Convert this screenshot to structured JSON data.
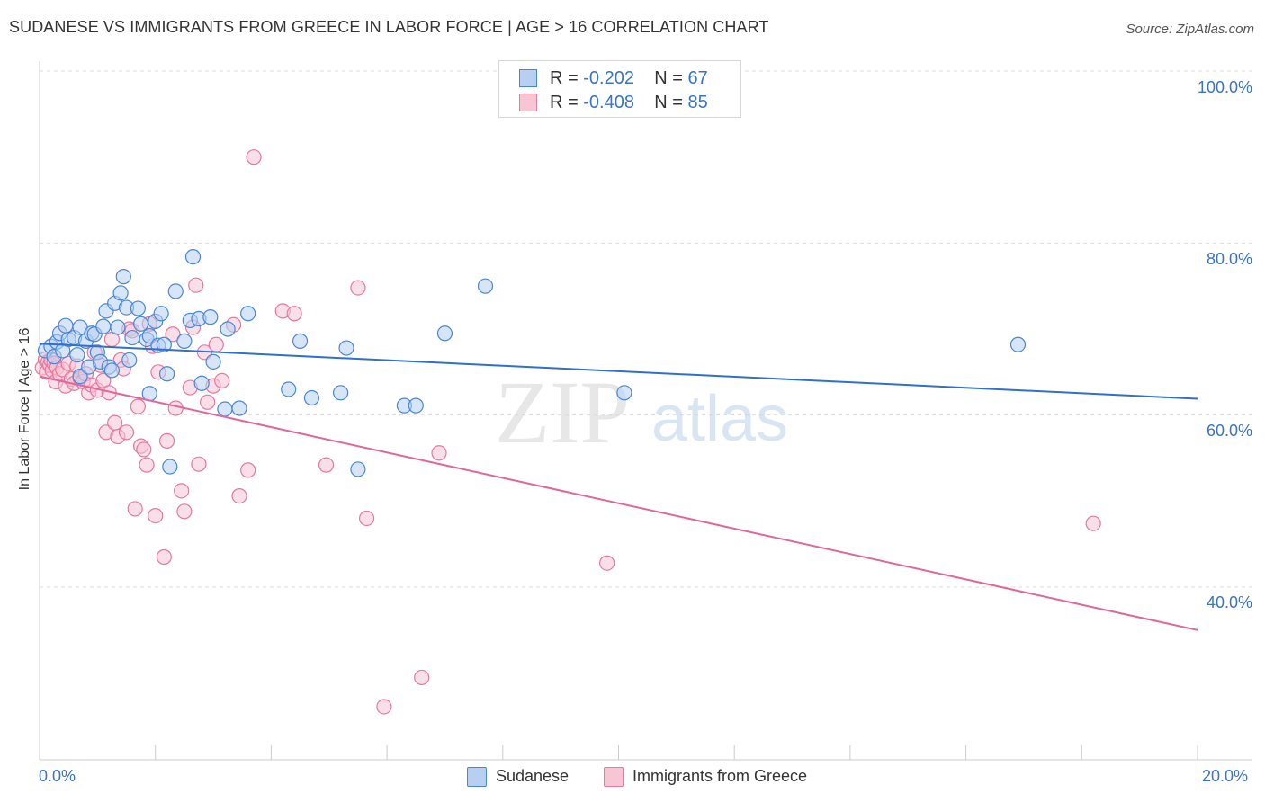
{
  "title": "SUDANESE VS IMMIGRANTS FROM GREECE IN LABOR FORCE | AGE > 16 CORRELATION CHART",
  "source": "Source: ZipAtlas.com",
  "watermark": {
    "zip": "ZIP",
    "atlas": "atlas"
  },
  "colors": {
    "blue_fill": "#b7d0f2",
    "blue_stroke": "#4a86d6",
    "blue_line": "#2f6fd0",
    "pink_fill": "#f8c5d5",
    "pink_stroke": "#e5799e",
    "pink_line": "#e0679a",
    "grid": "#dddddd",
    "axis_text": "#3b73c8"
  },
  "legend_top": [
    {
      "r_label": "R =",
      "r_value": "-0.202",
      "n_label": "N =",
      "n_value": "67"
    },
    {
      "r_label": "R =",
      "r_value": "-0.408",
      "n_label": "N =",
      "n_value": "85"
    }
  ],
  "legend_bottom": [
    "Sudanese",
    "Immigrants from Greece"
  ],
  "chart_data": {
    "type": "scatter",
    "title": "SUDANESE VS IMMIGRANTS FROM GREECE IN LABOR FORCE | AGE > 16 CORRELATION CHART",
    "xlabel": "",
    "ylabel": "In Labor Force | Age > 16",
    "x_tick_labels": [
      "0.0%",
      "20.0%"
    ],
    "y_tick_labels": [
      "100.0%",
      "80.0%",
      "60.0%",
      "40.0%"
    ],
    "xlim": [
      0,
      20
    ],
    "ylim": [
      20,
      103
    ],
    "y_gridlines": [
      100,
      80,
      60,
      40
    ],
    "series": [
      {
        "name": "Sudanese",
        "r": -0.202,
        "n": 67,
        "trend": {
          "x0": 0,
          "y0": 68.3,
          "x1": 20,
          "y1": 61.9
        },
        "points": [
          [
            0.1,
            67.5
          ],
          [
            0.2,
            68.0
          ],
          [
            0.25,
            66.8
          ],
          [
            0.3,
            68.5
          ],
          [
            0.35,
            69.5
          ],
          [
            0.4,
            67.5
          ],
          [
            0.45,
            70.4
          ],
          [
            0.5,
            68.8
          ],
          [
            0.6,
            69.0
          ],
          [
            0.65,
            67.0
          ],
          [
            0.7,
            64.5
          ],
          [
            0.7,
            70.2
          ],
          [
            0.8,
            68.6
          ],
          [
            0.85,
            65.6
          ],
          [
            0.9,
            69.5
          ],
          [
            0.95,
            69.4
          ],
          [
            1.0,
            67.3
          ],
          [
            1.05,
            66.2
          ],
          [
            1.1,
            70.3
          ],
          [
            1.15,
            72.1
          ],
          [
            1.2,
            65.6
          ],
          [
            1.25,
            65.2
          ],
          [
            1.3,
            73.0
          ],
          [
            1.35,
            70.2
          ],
          [
            1.4,
            74.2
          ],
          [
            1.45,
            76.1
          ],
          [
            1.5,
            72.5
          ],
          [
            1.55,
            66.4
          ],
          [
            1.6,
            69.0
          ],
          [
            1.7,
            72.4
          ],
          [
            1.75,
            70.6
          ],
          [
            1.85,
            68.8
          ],
          [
            1.9,
            69.2
          ],
          [
            1.9,
            62.5
          ],
          [
            2.0,
            70.9
          ],
          [
            2.05,
            68.1
          ],
          [
            2.1,
            71.8
          ],
          [
            2.15,
            68.2
          ],
          [
            2.2,
            64.8
          ],
          [
            2.25,
            54.0
          ],
          [
            2.35,
            74.4
          ],
          [
            2.5,
            68.6
          ],
          [
            2.6,
            71.0
          ],
          [
            2.65,
            78.4
          ],
          [
            2.75,
            71.2
          ],
          [
            2.8,
            63.7
          ],
          [
            2.95,
            71.4
          ],
          [
            3.0,
            66.2
          ],
          [
            3.2,
            60.7
          ],
          [
            3.25,
            70.0
          ],
          [
            3.45,
            60.8
          ],
          [
            3.6,
            71.8
          ],
          [
            4.3,
            63.0
          ],
          [
            4.5,
            68.6
          ],
          [
            4.7,
            62.0
          ],
          [
            5.2,
            62.6
          ],
          [
            5.3,
            67.8
          ],
          [
            5.5,
            53.7
          ],
          [
            6.3,
            61.1
          ],
          [
            6.5,
            61.1
          ],
          [
            7.0,
            69.5
          ],
          [
            7.7,
            75.0
          ],
          [
            10.1,
            62.6
          ],
          [
            16.9,
            68.2
          ]
        ]
      },
      {
        "name": "Immigrants from Greece",
        "r": -0.408,
        "n": 85,
        "trend": {
          "x0": 0,
          "y0": 64.5,
          "x1": 20,
          "y1": 35.0
        },
        "points": [
          [
            0.05,
            65.5
          ],
          [
            0.1,
            66.5
          ],
          [
            0.12,
            65.0
          ],
          [
            0.15,
            66.2
          ],
          [
            0.18,
            65.8
          ],
          [
            0.2,
            66.4
          ],
          [
            0.22,
            65.2
          ],
          [
            0.25,
            66.0
          ],
          [
            0.28,
            63.9
          ],
          [
            0.3,
            65.5
          ],
          [
            0.35,
            64.8
          ],
          [
            0.4,
            65.3
          ],
          [
            0.45,
            63.4
          ],
          [
            0.5,
            66.0
          ],
          [
            0.55,
            64.2
          ],
          [
            0.6,
            63.7
          ],
          [
            0.65,
            65.7
          ],
          [
            0.7,
            64.3
          ],
          [
            0.75,
            63.9
          ],
          [
            0.8,
            64.8
          ],
          [
            0.85,
            62.6
          ],
          [
            0.9,
            63.5
          ],
          [
            0.95,
            67.3
          ],
          [
            1.0,
            62.9
          ],
          [
            1.05,
            65.8
          ],
          [
            1.1,
            64.0
          ],
          [
            1.15,
            58.0
          ],
          [
            1.2,
            62.6
          ],
          [
            1.25,
            68.8
          ],
          [
            1.3,
            59.1
          ],
          [
            1.35,
            57.5
          ],
          [
            1.4,
            66.4
          ],
          [
            1.45,
            65.4
          ],
          [
            1.5,
            58.0
          ],
          [
            1.55,
            70.0
          ],
          [
            1.6,
            69.8
          ],
          [
            1.65,
            49.1
          ],
          [
            1.7,
            61.0
          ],
          [
            1.75,
            56.4
          ],
          [
            1.8,
            56.0
          ],
          [
            1.85,
            54.2
          ],
          [
            1.9,
            70.6
          ],
          [
            1.95,
            68.0
          ],
          [
            2.0,
            48.3
          ],
          [
            2.05,
            65.0
          ],
          [
            2.15,
            43.5
          ],
          [
            2.2,
            57.0
          ],
          [
            2.3,
            69.4
          ],
          [
            2.35,
            60.8
          ],
          [
            2.45,
            51.2
          ],
          [
            2.5,
            48.8
          ],
          [
            2.6,
            63.2
          ],
          [
            2.65,
            70.2
          ],
          [
            2.7,
            75.1
          ],
          [
            2.75,
            54.3
          ],
          [
            2.85,
            67.3
          ],
          [
            2.9,
            61.5
          ],
          [
            3.0,
            63.4
          ],
          [
            3.05,
            68.2
          ],
          [
            3.15,
            64.0
          ],
          [
            3.35,
            70.5
          ],
          [
            3.45,
            50.6
          ],
          [
            3.6,
            53.6
          ],
          [
            3.7,
            90.0
          ],
          [
            4.2,
            72.1
          ],
          [
            4.4,
            71.8
          ],
          [
            4.95,
            54.2
          ],
          [
            5.5,
            74.8
          ],
          [
            5.65,
            48.0
          ],
          [
            5.95,
            26.1
          ],
          [
            6.6,
            29.5
          ],
          [
            6.9,
            55.6
          ],
          [
            9.8,
            42.8
          ],
          [
            18.2,
            47.4
          ]
        ]
      }
    ]
  }
}
